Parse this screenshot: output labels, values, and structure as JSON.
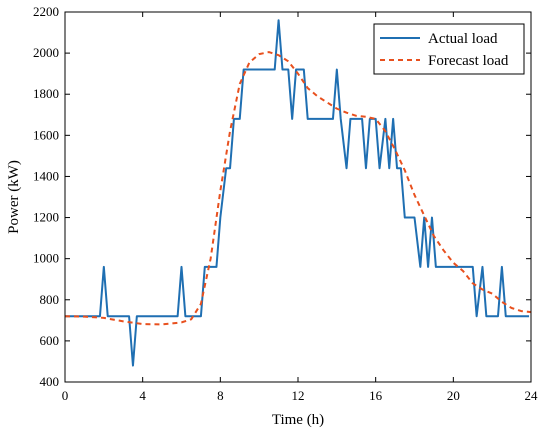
{
  "chart_data": {
    "type": "line",
    "xlabel": "Time (h)",
    "ylabel": "Power (kW)",
    "xlim": [
      0,
      24
    ],
    "ylim": [
      400,
      2200
    ],
    "xticks": [
      0,
      4,
      8,
      12,
      16,
      20,
      24
    ],
    "yticks": [
      400,
      600,
      800,
      1000,
      1200,
      1400,
      1600,
      1800,
      2000,
      2200
    ],
    "grid": false,
    "legend_position": "top-right",
    "series": [
      {
        "name": "Actual load",
        "color": "#1f6fb2",
        "style": "solid",
        "x": [
          0,
          1.8,
          2.0,
          2.2,
          3.3,
          3.5,
          3.7,
          5.8,
          6.0,
          6.2,
          7.0,
          7.2,
          7.8,
          8.0,
          8.3,
          8.5,
          8.7,
          9.0,
          9.2,
          10.8,
          11.0,
          11.2,
          11.5,
          11.7,
          11.9,
          12.3,
          12.5,
          13.8,
          14.0,
          14.2,
          14.5,
          14.7,
          15.3,
          15.5,
          15.7,
          16.0,
          16.2,
          16.5,
          16.7,
          16.9,
          17.1,
          17.3,
          17.5,
          17.8,
          18.0,
          18.3,
          18.5,
          18.7,
          18.9,
          19.1,
          19.3,
          19.5,
          20.8,
          21.0,
          21.2,
          21.5,
          21.7,
          22.3,
          22.5,
          22.7,
          23.9
        ],
        "y": [
          720,
          720,
          960,
          720,
          720,
          480,
          720,
          720,
          960,
          720,
          720,
          960,
          960,
          1200,
          1440,
          1440,
          1680,
          1680,
          1920,
          1920,
          2160,
          1920,
          1920,
          1680,
          1920,
          1920,
          1680,
          1680,
          1920,
          1680,
          1440,
          1680,
          1680,
          1440,
          1680,
          1680,
          1440,
          1680,
          1440,
          1680,
          1440,
          1440,
          1200,
          1200,
          1200,
          960,
          1200,
          960,
          1200,
          960,
          960,
          960,
          960,
          960,
          720,
          960,
          720,
          720,
          960,
          720,
          720
        ]
      },
      {
        "name": "Forecast load",
        "color": "#e8501e",
        "style": "dashed",
        "x": [
          0,
          1,
          2,
          3,
          4,
          5,
          6,
          6.5,
          7,
          7.5,
          8,
          8.5,
          9,
          9.5,
          10,
          10.5,
          11,
          11.5,
          12,
          12.5,
          13,
          13.5,
          14,
          14.5,
          15,
          15.5,
          16,
          16.5,
          17,
          17.5,
          18,
          18.5,
          19,
          19.5,
          20,
          20.5,
          21,
          21.5,
          22,
          22.5,
          23,
          23.5,
          24
        ],
        "y": [
          720,
          718,
          712,
          695,
          682,
          680,
          690,
          705,
          780,
          1000,
          1330,
          1620,
          1850,
          1955,
          1995,
          2005,
          1990,
          1960,
          1900,
          1830,
          1790,
          1760,
          1730,
          1710,
          1695,
          1690,
          1680,
          1620,
          1530,
          1430,
          1310,
          1210,
          1110,
          1040,
          980,
          940,
          880,
          850,
          830,
          790,
          760,
          745,
          740
        ]
      }
    ]
  }
}
